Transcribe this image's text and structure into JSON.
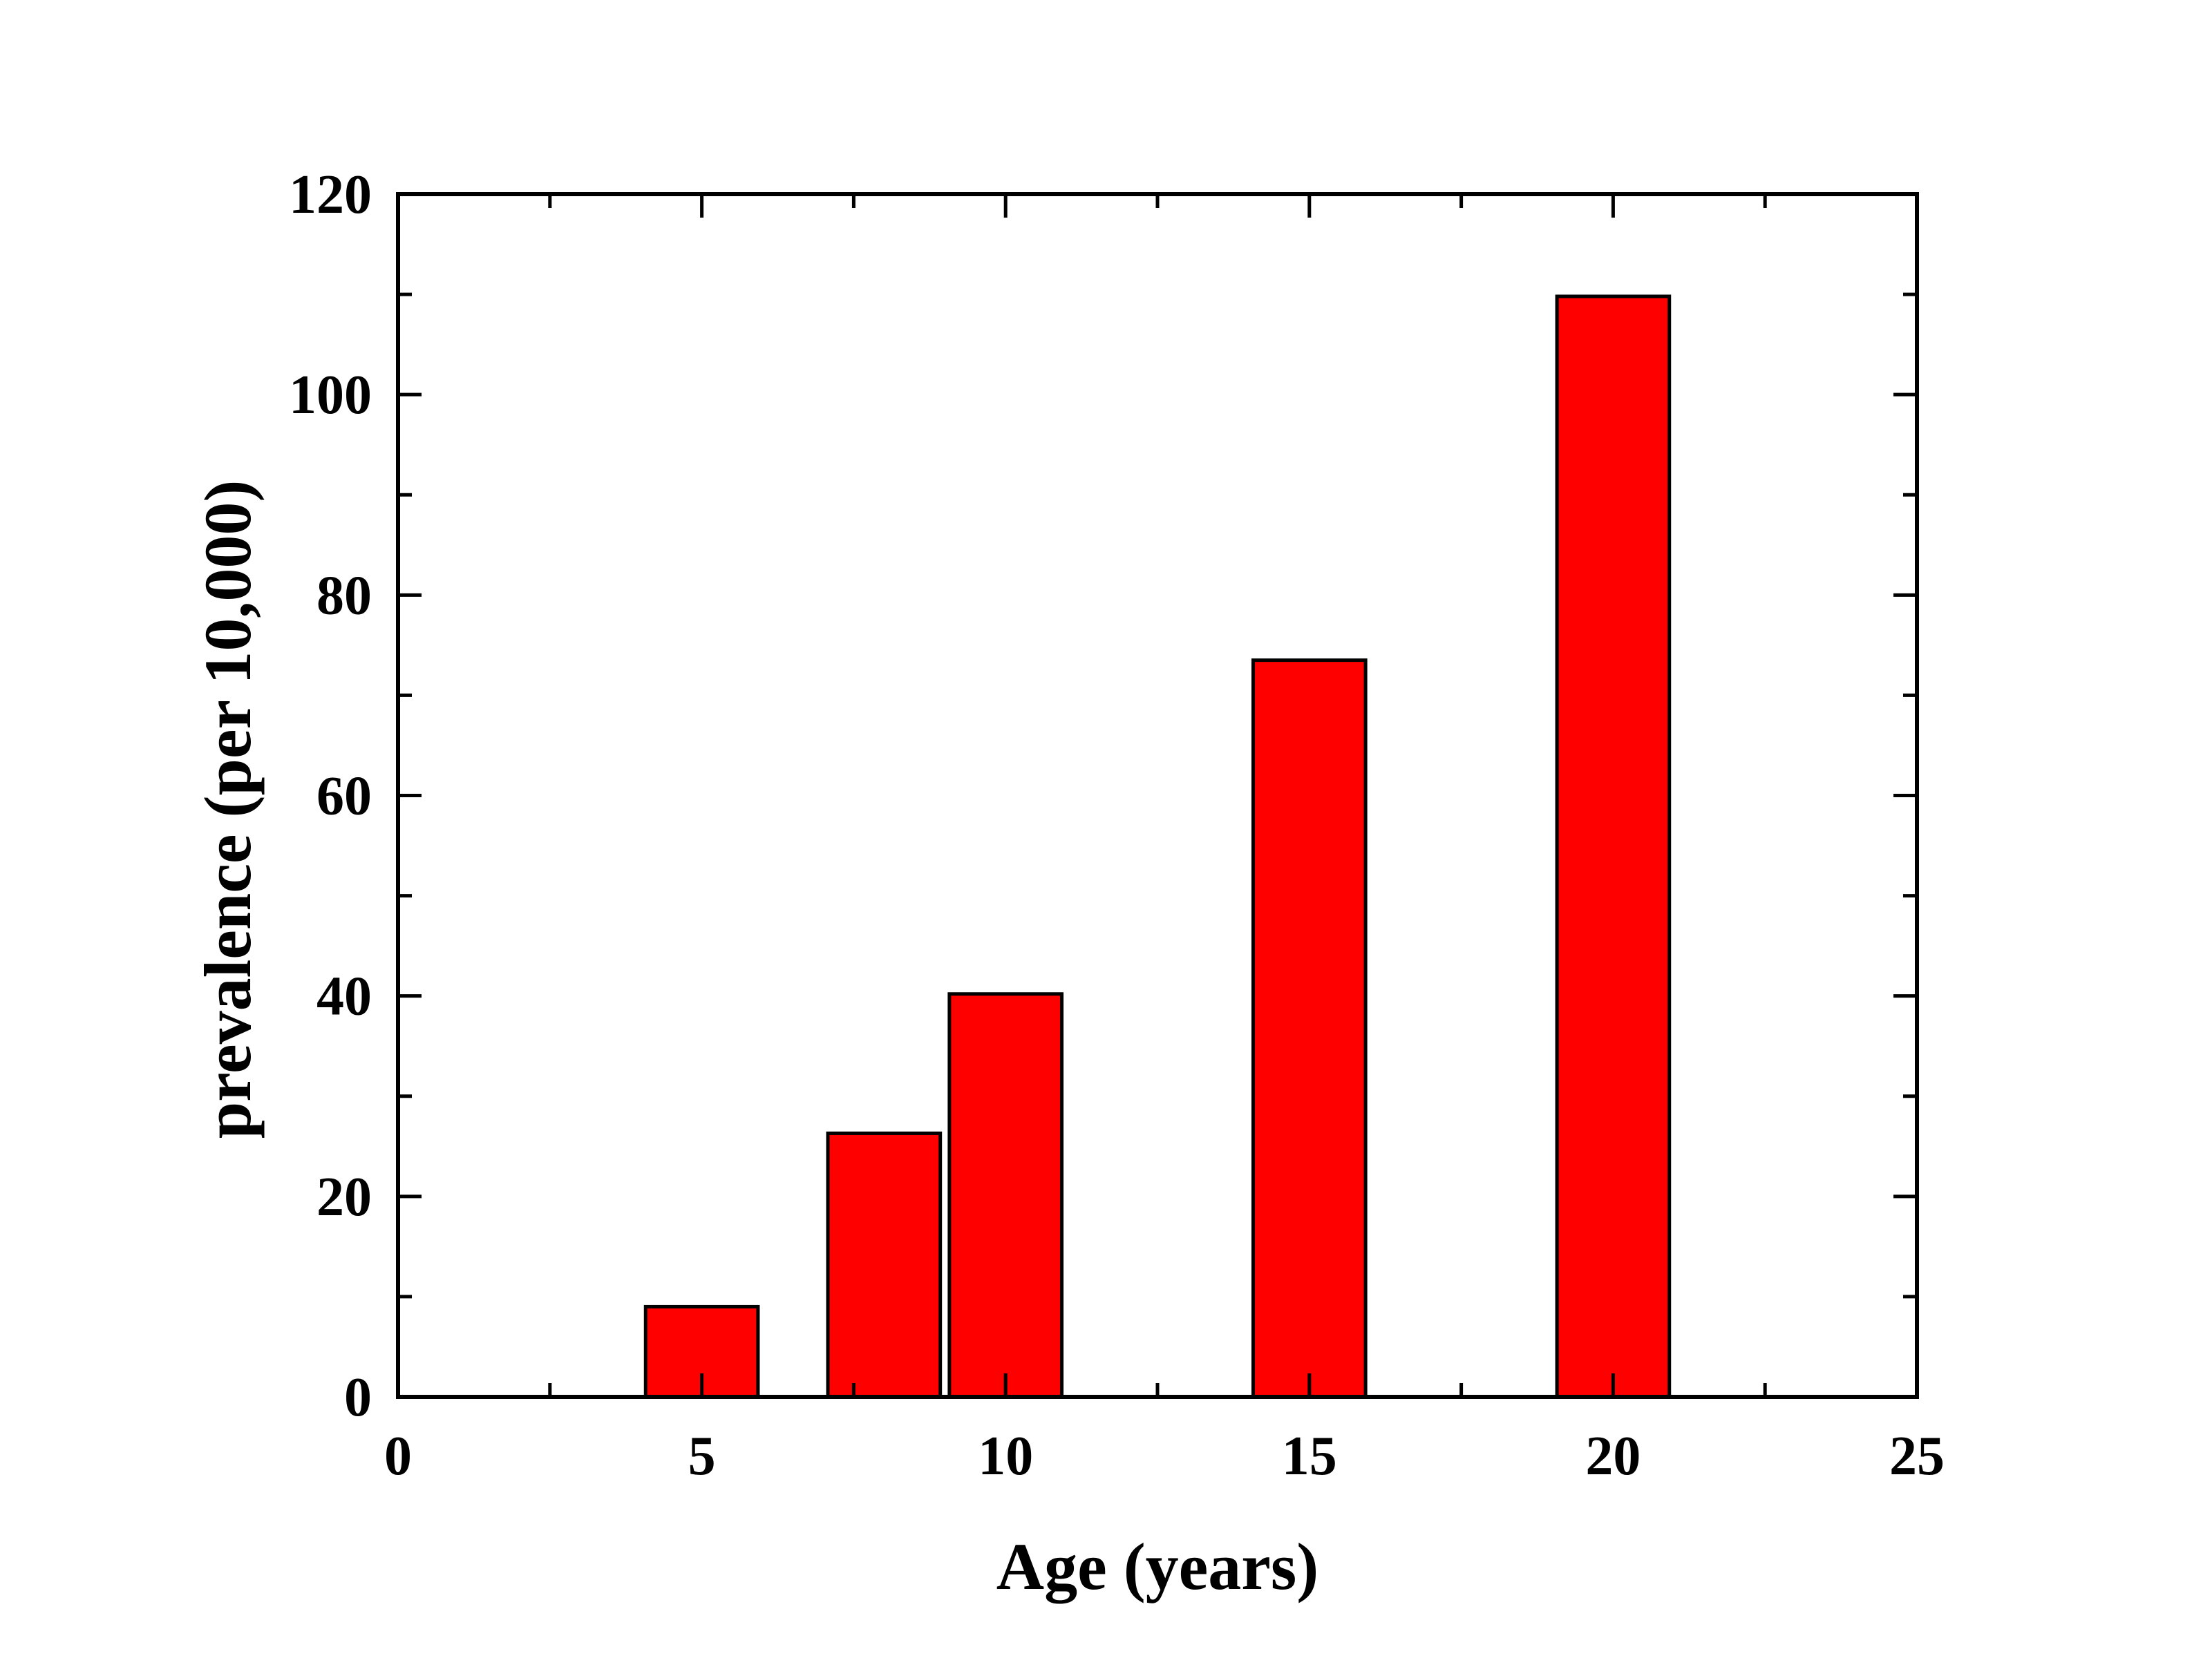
{
  "chart_data": {
    "type": "bar",
    "title": "",
    "xlabel": "Age (years)",
    "ylabel": "prevalence (per 10,000)",
    "x": [
      5,
      8,
      10,
      15,
      20
    ],
    "values": [
      9,
      26.3,
      40.2,
      73.5,
      109.8
    ],
    "bar_width": 1.85,
    "xlim": [
      0,
      25
    ],
    "ylim": [
      0,
      120
    ],
    "x_major_ticks": [
      0,
      5,
      10,
      15,
      20,
      25
    ],
    "x_minor_ticks": [
      2.5,
      7.5,
      12.5,
      17.5,
      22.5
    ],
    "y_major_ticks": [
      0,
      20,
      40,
      60,
      80,
      100,
      120
    ],
    "y_minor_ticks": [
      10,
      30,
      50,
      70,
      90,
      110
    ],
    "x_tick_labels": [
      "0",
      "5",
      "10",
      "15",
      "20",
      "25"
    ],
    "y_tick_labels": [
      "0",
      "20",
      "40",
      "60",
      "80",
      "100",
      "120"
    ],
    "grid": false,
    "legend": "none",
    "colors": {
      "bar_fill": "#ff0000",
      "bar_stroke": "#000000",
      "axis": "#000000",
      "background": "#ffffff"
    }
  }
}
